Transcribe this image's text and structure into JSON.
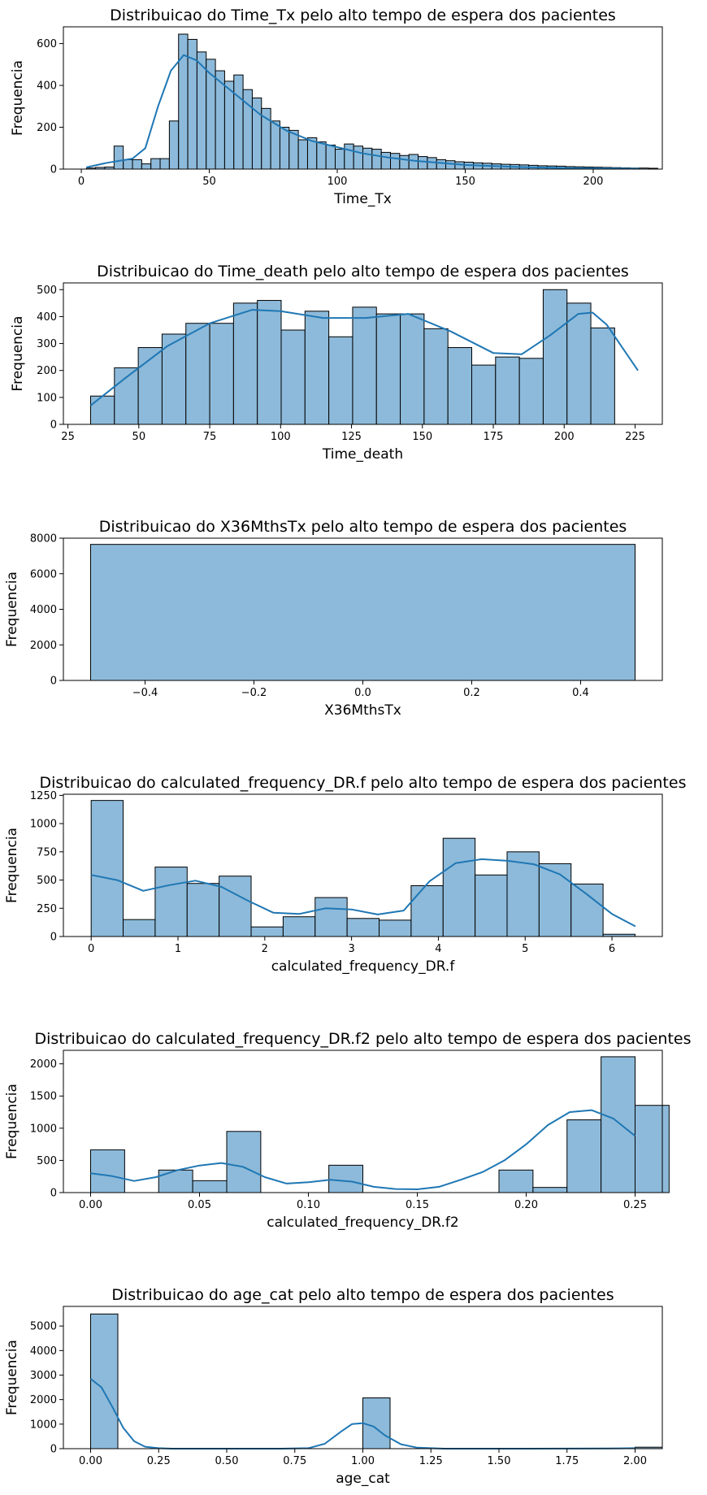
{
  "colors": {
    "bar_fill": "#8dbada",
    "bar_edge": "#000000",
    "kde_line": "#1f77b4",
    "axes": "#000000"
  },
  "chart_data": [
    {
      "type": "bar",
      "title": "Distribuicao do Time_Tx pelo alto tempo de espera dos pacientes",
      "xlabel": "Time_Tx",
      "ylabel": "Frequencia",
      "xlim": [
        -7,
        227
      ],
      "ylim": [
        0,
        680
      ],
      "xticks": [
        0,
        50,
        100,
        150,
        200
      ],
      "xtick_labels": [
        "0",
        "50",
        "100",
        "150",
        "200"
      ],
      "yticks": [
        0,
        200,
        400,
        600
      ],
      "ytick_labels": [
        "0",
        "200",
        "400",
        "600"
      ],
      "bin_start": 2,
      "bin_width": 3.6,
      "values": [
        5,
        8,
        10,
        110,
        45,
        45,
        25,
        50,
        50,
        230,
        645,
        620,
        560,
        525,
        470,
        420,
        450,
        380,
        340,
        290,
        230,
        200,
        185,
        140,
        150,
        130,
        115,
        95,
        120,
        110,
        100,
        95,
        80,
        75,
        65,
        70,
        60,
        55,
        45,
        40,
        35,
        33,
        30,
        28,
        25,
        23,
        22,
        20,
        18,
        16,
        15,
        14,
        12,
        11,
        10,
        9,
        8,
        7,
        6,
        5,
        5,
        4
      ],
      "kde": {
        "x": [
          2,
          10,
          20,
          25,
          30,
          35,
          40,
          45,
          50,
          60,
          70,
          80,
          90,
          100,
          110,
          120,
          130,
          150,
          170,
          190,
          218
        ],
        "y": [
          8,
          30,
          50,
          100,
          300,
          470,
          545,
          520,
          460,
          360,
          260,
          185,
          135,
          105,
          75,
          55,
          40,
          20,
          10,
          5,
          2
        ]
      },
      "grid": false,
      "legend": "none"
    },
    {
      "type": "bar",
      "title": "Distribuicao do Time_death pelo alto tempo de espera dos pacientes",
      "xlabel": "Time_death",
      "ylabel": "Frequencia",
      "xlim": [
        23.4,
        234.6
      ],
      "ylim": [
        0,
        525
      ],
      "xticks": [
        25,
        50,
        75,
        100,
        125,
        150,
        175,
        200,
        225
      ],
      "xtick_labels": [
        "25",
        "50",
        "75",
        "100",
        "125",
        "150",
        "175",
        "200",
        "225"
      ],
      "yticks": [
        0,
        100,
        200,
        300,
        400,
        500
      ],
      "ytick_labels": [
        "0",
        "100",
        "200",
        "300",
        "400",
        "500"
      ],
      "bin_start": 33,
      "bin_width": 8.4,
      "values": [
        105,
        210,
        285,
        335,
        375,
        375,
        450,
        460,
        350,
        420,
        325,
        435,
        410,
        410,
        355,
        285,
        220,
        250,
        245,
        500,
        450,
        358
      ],
      "kde": {
        "x": [
          33,
          45,
          60,
          75,
          90,
          100,
          115,
          130,
          145,
          160,
          175,
          185,
          195,
          205,
          210,
          215,
          226
        ],
        "y": [
          70,
          170,
          290,
          375,
          425,
          420,
          395,
          395,
          410,
          345,
          265,
          260,
          330,
          410,
          415,
          370,
          200
        ]
      },
      "grid": false,
      "legend": "none"
    },
    {
      "type": "bar",
      "title": "Distribuicao do X36MthsTx pelo alto tempo de espera dos pacientes",
      "xlabel": "X36MthsTx",
      "ylabel": "Frequencia",
      "xlim": [
        -0.55,
        0.55
      ],
      "ylim": [
        0,
        8000
      ],
      "xticks": [
        -0.4,
        -0.2,
        0.0,
        0.2,
        0.4
      ],
      "xtick_labels": [
        "−0.4",
        "−0.2",
        "0.0",
        "0.2",
        "0.4"
      ],
      "yticks": [
        0,
        2000,
        4000,
        6000,
        8000
      ],
      "ytick_labels": [
        "0",
        "2000",
        "4000",
        "6000",
        "8000"
      ],
      "bin_start": -0.5,
      "bin_width": 1.0,
      "values": [
        7650
      ],
      "grid": false,
      "legend": "none"
    },
    {
      "type": "bar",
      "title": "Distribuicao do calculated_frequency_DR.f pelo alto tempo de espera dos pacientes",
      "xlabel": "calculated_frequency_DR.f",
      "ylabel": "Frequencia",
      "xlim": [
        -0.32,
        6.58
      ],
      "ylim": [
        0,
        1260
      ],
      "xticks": [
        0,
        1,
        2,
        3,
        4,
        5,
        6
      ],
      "xtick_labels": [
        "0",
        "1",
        "2",
        "3",
        "4",
        "5",
        "6"
      ],
      "yticks": [
        0,
        250,
        500,
        750,
        1000,
        1250
      ],
      "ytick_labels": [
        "0",
        "250",
        "500",
        "750",
        "1000",
        "1250"
      ],
      "bin_start": 0,
      "bin_width": 0.3686,
      "values": [
        1205,
        150,
        615,
        470,
        535,
        85,
        175,
        345,
        160,
        145,
        450,
        870,
        545,
        750,
        645,
        465,
        20
      ],
      "kde": {
        "x": [
          0,
          0.3,
          0.6,
          0.9,
          1.2,
          1.5,
          1.8,
          2.1,
          2.4,
          2.7,
          3.0,
          3.3,
          3.6,
          3.9,
          4.2,
          4.5,
          4.8,
          5.1,
          5.4,
          5.7,
          6.0,
          6.27
        ],
        "y": [
          545,
          500,
          405,
          455,
          495,
          440,
          320,
          210,
          200,
          250,
          240,
          195,
          230,
          490,
          650,
          685,
          670,
          640,
          550,
          380,
          200,
          90
        ]
      },
      "grid": false,
      "legend": "none"
    },
    {
      "type": "bar",
      "title": "Distribuicao do calculated_frequency_DR.f2 pelo alto tempo de espera dos pacientes",
      "xlabel": "calculated_frequency_DR.f2",
      "ylabel": "Frequencia",
      "xlim": [
        -0.0125,
        0.2625
      ],
      "ylim": [
        0,
        2210
      ],
      "xticks": [
        0.0,
        0.05,
        0.1,
        0.15,
        0.2,
        0.25
      ],
      "xtick_labels": [
        "0.00",
        "0.05",
        "0.10",
        "0.15",
        "0.20",
        "0.25"
      ],
      "yticks": [
        0,
        500,
        1000,
        1500,
        2000
      ],
      "ytick_labels": [
        "0",
        "500",
        "1000",
        "1500",
        "2000"
      ],
      "bin_start": 0,
      "bin_width": 0.015625,
      "values": [
        665,
        0,
        350,
        185,
        950,
        0,
        0,
        425,
        0,
        0,
        0,
        0,
        350,
        80,
        1130,
        2110,
        1355
      ],
      "kde": {
        "x": [
          0,
          0.01,
          0.02,
          0.03,
          0.04,
          0.05,
          0.06,
          0.07,
          0.08,
          0.09,
          0.1,
          0.11,
          0.12,
          0.13,
          0.14,
          0.15,
          0.16,
          0.17,
          0.18,
          0.19,
          0.2,
          0.21,
          0.22,
          0.23,
          0.24,
          0.25
        ],
        "y": [
          300,
          255,
          180,
          240,
          350,
          420,
          460,
          400,
          240,
          140,
          160,
          200,
          170,
          90,
          55,
          50,
          90,
          200,
          320,
          500,
          750,
          1050,
          1250,
          1280,
          1150,
          880
        ]
      },
      "grid": false,
      "legend": "none"
    },
    {
      "type": "bar",
      "title": "Distribuicao do age_cat pelo alto tempo de espera dos pacientes",
      "xlabel": "age_cat",
      "ylabel": "Frequencia",
      "xlim": [
        -0.1,
        2.1
      ],
      "ylim": [
        0,
        5800
      ],
      "xticks": [
        0.0,
        0.25,
        0.5,
        0.75,
        1.0,
        1.25,
        1.5,
        1.75,
        2.0
      ],
      "xtick_labels": [
        "0.00",
        "0.25",
        "0.50",
        "0.75",
        "1.00",
        "1.25",
        "1.50",
        "1.75",
        "2.00"
      ],
      "yticks": [
        0,
        1000,
        2000,
        3000,
        4000,
        5000
      ],
      "ytick_labels": [
        "0",
        "1000",
        "2000",
        "3000",
        "4000",
        "5000"
      ],
      "bin_start": 0,
      "bin_width": 0.1,
      "values": [
        5490,
        0,
        0,
        0,
        0,
        0,
        0,
        0,
        0,
        0,
        2070,
        0,
        0,
        0,
        0,
        0,
        0,
        0,
        0,
        0,
        60
      ],
      "kde": {
        "x": [
          0,
          0.04,
          0.08,
          0.12,
          0.16,
          0.2,
          0.25,
          0.3,
          0.5,
          0.7,
          0.8,
          0.86,
          0.92,
          0.96,
          1.0,
          1.04,
          1.08,
          1.14,
          1.2,
          1.3,
          1.6,
          1.9,
          2.0
        ],
        "y": [
          2850,
          2500,
          1700,
          850,
          300,
          80,
          20,
          0,
          0,
          0,
          20,
          200,
          700,
          1000,
          1040,
          900,
          550,
          180,
          40,
          0,
          0,
          10,
          20
        ]
      },
      "grid": false,
      "legend": "none"
    }
  ]
}
